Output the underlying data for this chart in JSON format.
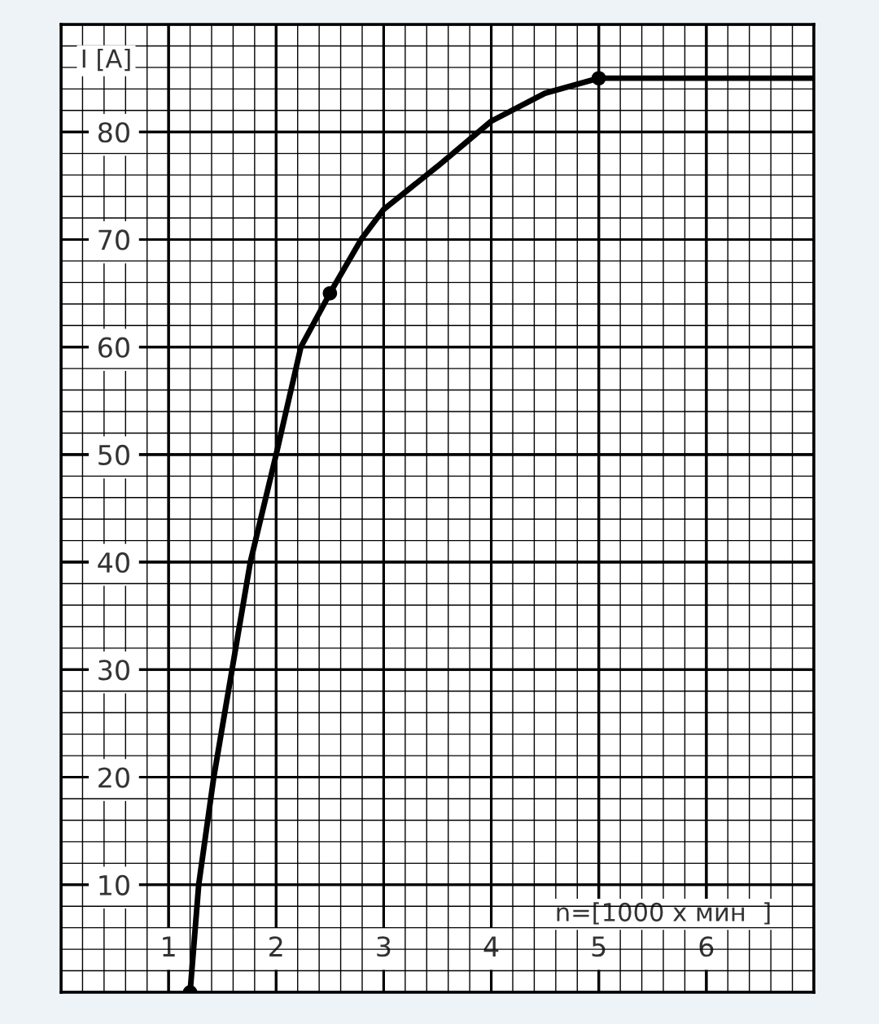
{
  "chart_data": {
    "type": "line",
    "xlabel": "n=[1000 x мин  ]",
    "ylabel": "I [A]",
    "xlim": [
      0,
      7
    ],
    "ylim": [
      0,
      90
    ],
    "xticks": [
      1,
      2,
      3,
      4,
      5,
      6
    ],
    "yticks": [
      10,
      20,
      30,
      40,
      50,
      60,
      70,
      80
    ],
    "grid": true,
    "series": [
      {
        "color": "#000000",
        "line_style": "solid",
        "x": [
          1.2,
          1.28,
          1.42,
          1.59,
          1.76,
          2.0,
          2.23,
          2.5,
          2.79,
          3.0,
          3.5,
          4.0,
          4.5,
          5.0,
          7.0
        ],
        "values": [
          0,
          10,
          20,
          30,
          40,
          50,
          60,
          65,
          70,
          72.8,
          76.8,
          81,
          83.6,
          85,
          85
        ]
      },
      {
        "type": "scatter",
        "color": "#000000",
        "marker": "circle",
        "x": [
          1.2,
          2.5,
          5.0
        ],
        "values": [
          0,
          65,
          85
        ]
      }
    ]
  }
}
